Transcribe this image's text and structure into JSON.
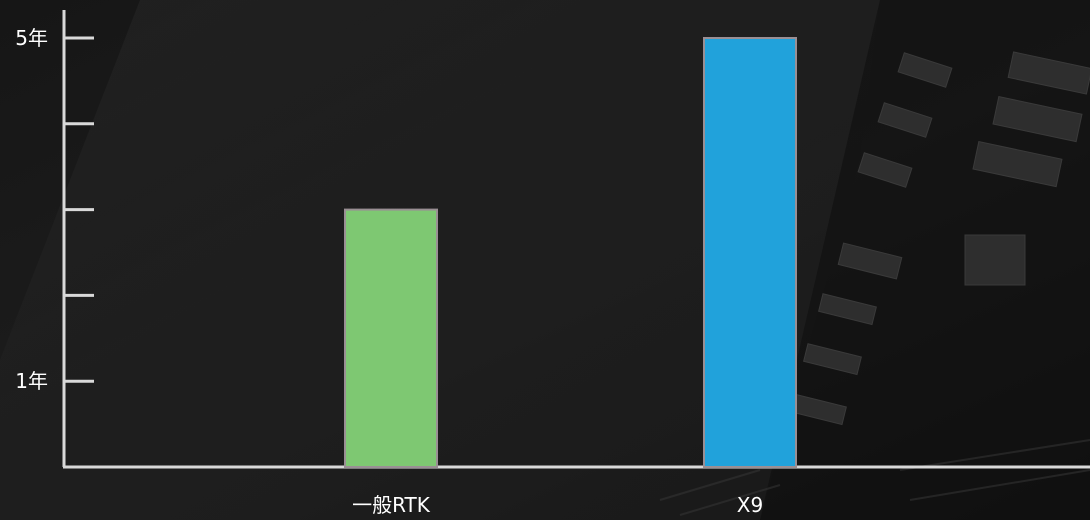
{
  "chart_data": {
    "type": "bar",
    "categories": [
      "一般RTK",
      "X9"
    ],
    "values": [
      3,
      5
    ],
    "colors": [
      "#7ec872",
      "#21a2db"
    ],
    "bar_border_color": "#9a8f94",
    "ylim": [
      0,
      5
    ],
    "yticks": [
      1,
      2,
      3,
      4,
      5
    ],
    "ytick_labels": {
      "1": "1年",
      "5": "5年"
    },
    "grid": false,
    "axis_color": "#d9d9d9"
  }
}
